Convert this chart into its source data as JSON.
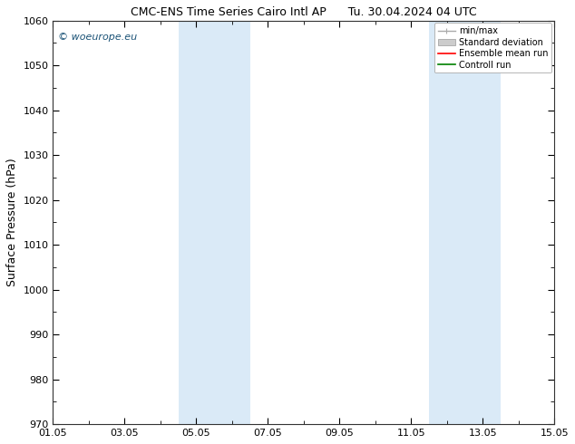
{
  "title_left": "CMC-ENS Time Series Cairo Intl AP",
  "title_right": "Tu. 30.04.2024 04 UTC",
  "ylabel": "Surface Pressure (hPa)",
  "ylim": [
    970,
    1060
  ],
  "yticks": [
    970,
    980,
    990,
    1000,
    1010,
    1020,
    1030,
    1040,
    1050,
    1060
  ],
  "xlim": [
    0,
    14
  ],
  "xtick_labels": [
    "01.05",
    "03.05",
    "05.05",
    "07.05",
    "09.05",
    "11.05",
    "13.05",
    "15.05"
  ],
  "xtick_positions": [
    0,
    2,
    4,
    6,
    8,
    10,
    12,
    14
  ],
  "shaded_bands": [
    {
      "xmin": 3.5,
      "xmax": 5.5
    },
    {
      "xmin": 10.5,
      "xmax": 12.5
    }
  ],
  "shaded_color": "#daeaf7",
  "watermark": "© woeurope.eu",
  "watermark_color": "#1a5276",
  "legend_items": [
    {
      "label": "min/max",
      "color": "#aaaaaa",
      "style": "line"
    },
    {
      "label": "Standard deviation",
      "color": "#cccccc",
      "style": "rect"
    },
    {
      "label": "Ensemble mean run",
      "color": "red",
      "style": "line"
    },
    {
      "label": "Controll run",
      "color": "green",
      "style": "line"
    }
  ],
  "background_color": "#ffffff",
  "plot_bg_color": "#ffffff",
  "title_fontsize": 9,
  "tick_fontsize": 8,
  "ylabel_fontsize": 9
}
